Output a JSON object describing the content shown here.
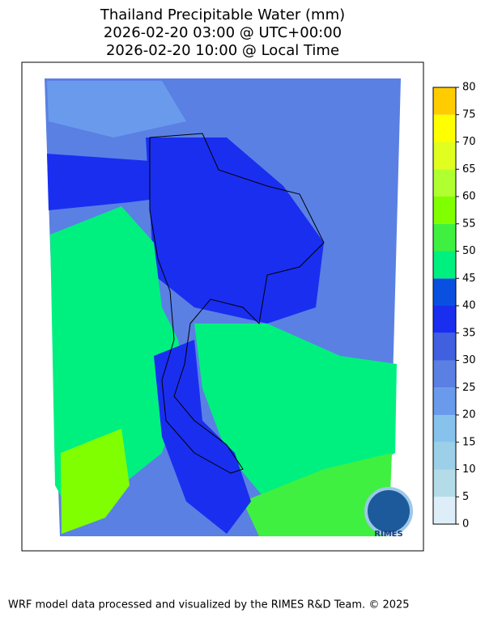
{
  "title": [
    "Thailand Precipitable Water (mm)",
    "2026-02-20 03:00 @ UTC+00:00",
    "2026-02-20 10:00 @ Local Time"
  ],
  "colorbar": {
    "ticks": [
      0,
      5,
      10,
      15,
      20,
      25,
      30,
      35,
      40,
      45,
      50,
      55,
      60,
      65,
      70,
      75,
      80
    ],
    "colors": [
      "#ddeef8",
      "#b4dce8",
      "#9ccfe8",
      "#86c2ec",
      "#6a9aec",
      "#5a80e4",
      "#4060e0",
      "#1a2ef0",
      "#0a50e0",
      "#00f080",
      "#40f040",
      "#80ff00",
      "#b0ff30",
      "#e0ff20",
      "#ffff00",
      "#ffcc00"
    ]
  },
  "logo": "RIMES",
  "footer": "WRF model data processed and visualized by the RIMES R&D Team. © 2025"
}
